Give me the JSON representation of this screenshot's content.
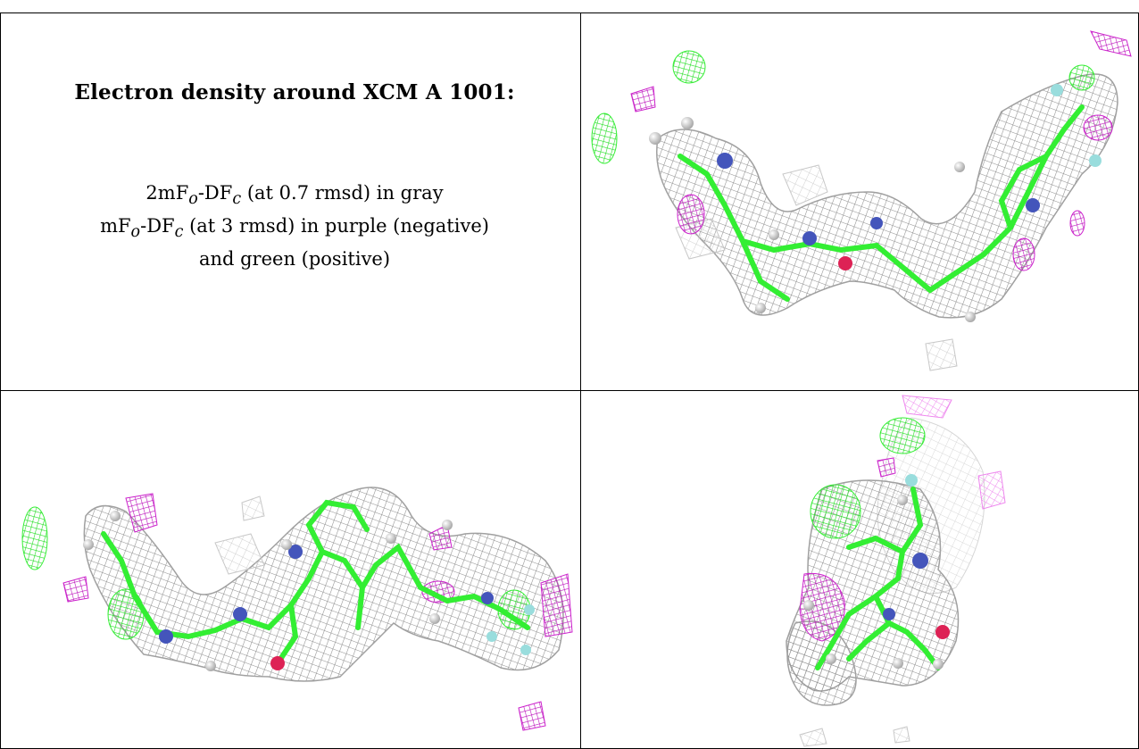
{
  "caption": {
    "title": "Electron density around XCM A 1001:",
    "line1_pre": "2mF",
    "line1_sub_o": "o",
    "line1_mid": "-DF",
    "line1_sub_c": "c",
    "line1_post": " (at 0.7 rmsd) in gray",
    "line2_pre": "mF",
    "line2_sub_o": "o",
    "line2_mid": "-DF",
    "line2_sub_c": "c",
    "line2_post": " (at 3 rmsd) in purple (negative)",
    "line3": "and green (positive)"
  },
  "colors": {
    "gray_mesh": "#9a9a9a",
    "purple_mesh": "#cc22cc",
    "green_mesh": "#33ee33",
    "carbon": "#44ee44",
    "nitrogen": "#4455bb",
    "oxygen": "#dd2255",
    "fluorine": "#99dddd",
    "hydrogen": "#dddddd"
  },
  "panels": [
    {
      "name": "top-right-view"
    },
    {
      "name": "bottom-left-view"
    },
    {
      "name": "bottom-right-view"
    }
  ]
}
